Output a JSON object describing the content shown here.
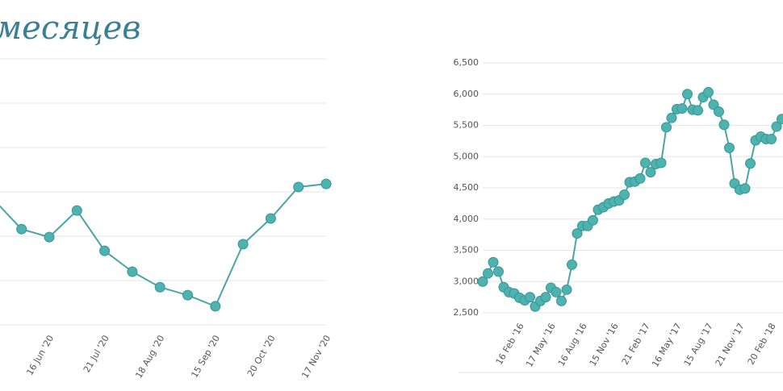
{
  "heading": "месяцев",
  "chart_data": [
    {
      "type": "line",
      "categories": [
        null,
        null,
        "16 Jun '20",
        null,
        "21 Jul '20",
        null,
        "18 Aug '20",
        null,
        "15 Sep '20",
        null,
        "20 Oct '20",
        null,
        "17 Nov '20"
      ],
      "values": [
        2.82,
        2.16,
        1.98,
        2.58,
        1.67,
        1.2,
        0.85,
        0.67,
        0.42,
        1.82,
        2.4,
        3.11,
        3.18
      ],
      "ylim": [
        0,
        6
      ],
      "yticks": [
        0,
        1,
        2,
        3,
        4,
        5,
        6
      ],
      "show_tick_labels": false,
      "grid": true,
      "color": "#4aa6a6"
    },
    {
      "type": "line",
      "categories": [
        null,
        null,
        null,
        null,
        null,
        null,
        null,
        "16 Feb '16",
        null,
        null,
        null,
        null,
        null,
        "17 May '16",
        null,
        null,
        null,
        null,
        null,
        "16 Aug '16",
        null,
        null,
        null,
        null,
        null,
        "15 Nov '16",
        null,
        null,
        null,
        null,
        null,
        "21 Feb '17",
        null,
        null,
        null,
        null,
        null,
        "16 May '17",
        null,
        null,
        null,
        null,
        null,
        "15 Aug '17",
        null,
        null,
        null,
        null,
        null,
        "21 Nov '17",
        null,
        null,
        null,
        null,
        null,
        "20 Feb '18",
        null,
        null
      ],
      "values": [
        3000,
        3130,
        3310,
        3160,
        2910,
        2830,
        2810,
        2740,
        2700,
        2750,
        2600,
        2690,
        2750,
        2900,
        2830,
        2690,
        2870,
        3270,
        3770,
        3890,
        3890,
        3980,
        4150,
        4190,
        4250,
        4280,
        4300,
        4390,
        4590,
        4600,
        4650,
        4900,
        4750,
        4880,
        4900,
        5470,
        5620,
        5760,
        5770,
        6000,
        5750,
        5740,
        5950,
        6030,
        5830,
        5720,
        5510,
        5140,
        4570,
        4470,
        4490,
        4890,
        5260,
        5320,
        5280,
        5280,
        5480,
        5600
      ],
      "ylim": [
        2500,
        6500
      ],
      "yticks": [
        {
          "value": 2500,
          "label": "2,500"
        },
        {
          "value": 3000,
          "label": "3,000"
        },
        {
          "value": 3500,
          "label": "3,500"
        },
        {
          "value": 4000,
          "label": "4,000"
        },
        {
          "value": 4500,
          "label": "4,500"
        },
        {
          "value": 5000,
          "label": "5,000"
        },
        {
          "value": 5500,
          "label": "5,500"
        },
        {
          "value": 6000,
          "label": "6,000"
        },
        {
          "value": 6500,
          "label": "6,500"
        }
      ],
      "show_tick_labels": true,
      "grid": true,
      "color": "#4aa6a6"
    }
  ]
}
